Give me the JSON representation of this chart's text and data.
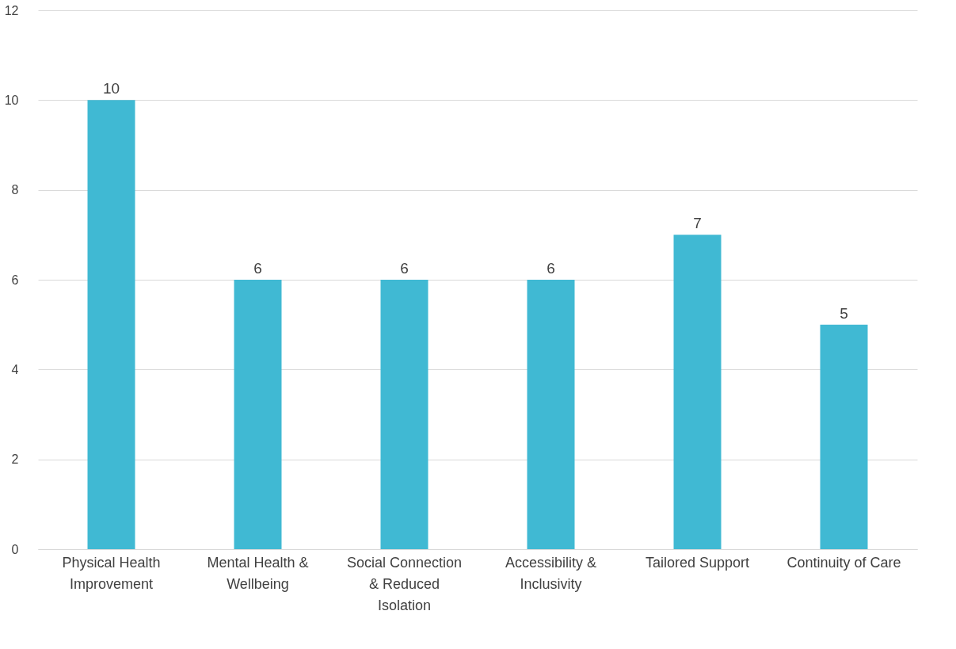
{
  "chart_data": {
    "type": "bar",
    "categories": [
      "Physical Health Improvement",
      "Mental Health & Wellbeing",
      "Social Connection & Reduced Isolation",
      "Accessibility & Inclusivity",
      "Tailored Support",
      "Continuity of Care"
    ],
    "values": [
      10,
      6,
      6,
      6,
      7,
      5
    ],
    "color": "#40b9d3",
    "ylim": [
      0,
      12
    ],
    "yticks": [
      0,
      2,
      4,
      6,
      8,
      10,
      12
    ],
    "grid": "y",
    "data_labels": true
  }
}
